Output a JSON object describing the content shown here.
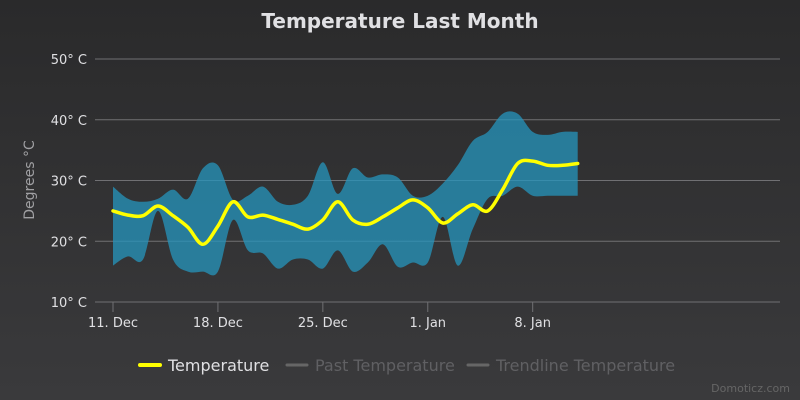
{
  "chart_data": {
    "type": "area",
    "title": "Temperature Last Month",
    "ylabel": "Degrees °C",
    "xlabel": "",
    "x_unit": "days (0 = 11. Dec)",
    "x_range": [
      0,
      44.5
    ],
    "ylim": [
      10,
      50
    ],
    "y_ticks": [
      {
        "value": 10,
        "label": "10° C"
      },
      {
        "value": 20,
        "label": "20° C"
      },
      {
        "value": 30,
        "label": "30° C"
      },
      {
        "value": 40,
        "label": "40° C"
      },
      {
        "value": 50,
        "label": "50° C"
      }
    ],
    "x_ticks": [
      {
        "value": 0,
        "label": "11. Dec"
      },
      {
        "value": 7,
        "label": "18. Dec"
      },
      {
        "value": 14,
        "label": "25. Dec"
      },
      {
        "value": 21,
        "label": "1. Jan"
      },
      {
        "value": 28,
        "label": "8. Jan"
      }
    ],
    "grid": true,
    "legend_position": "bottom-center",
    "series": [
      {
        "name": "Temperature",
        "role": "line",
        "color": "#ffff00",
        "x": [
          0,
          1,
          2,
          3,
          4,
          5,
          6,
          7,
          8,
          9,
          10,
          11,
          12,
          13,
          14,
          15,
          16,
          17,
          18,
          19,
          20,
          21,
          22,
          23,
          24,
          25,
          26,
          27,
          28,
          29,
          30,
          31
        ],
        "values": [
          25.0,
          24.3,
          24.2,
          25.8,
          24.2,
          22.3,
          19.5,
          22.5,
          26.5,
          24.0,
          24.3,
          23.6,
          22.8,
          22.0,
          23.5,
          26.5,
          23.5,
          22.8,
          24.0,
          25.5,
          26.8,
          25.5,
          23.0,
          24.5,
          26.0,
          25.0,
          28.5,
          32.8,
          33.2,
          32.5,
          32.5,
          32.8
        ]
      },
      {
        "name": "Range",
        "role": "band",
        "color": "#2596be",
        "x": [
          0,
          1,
          2,
          3,
          4,
          5,
          6,
          7,
          8,
          9,
          10,
          11,
          12,
          13,
          14,
          15,
          16,
          17,
          18,
          19,
          20,
          21,
          22,
          23,
          24,
          25,
          26,
          27,
          28,
          29,
          30,
          31
        ],
        "high": [
          29.0,
          27.0,
          26.5,
          27.0,
          28.5,
          27.0,
          32.0,
          32.5,
          26.8,
          27.5,
          29.0,
          26.5,
          26.0,
          27.5,
          33.0,
          27.8,
          32.0,
          30.5,
          31.0,
          30.5,
          27.5,
          27.5,
          29.5,
          32.5,
          36.5,
          38.0,
          41.0,
          41.0,
          38.0,
          37.5,
          38.0,
          38.0
        ],
        "low": [
          16.0,
          17.5,
          17.0,
          25.0,
          17.0,
          15.0,
          15.0,
          15.0,
          23.5,
          18.5,
          18.0,
          15.5,
          17.0,
          17.0,
          15.5,
          18.5,
          15.0,
          16.5,
          19.5,
          15.8,
          16.5,
          16.5,
          24.0,
          16.0,
          22.0,
          27.0,
          27.5,
          29.0,
          27.5,
          27.5,
          27.5,
          27.5
        ]
      }
    ],
    "legend": [
      {
        "label": "Temperature",
        "color": "#ffff00",
        "active": true
      },
      {
        "label": "Past Temperature",
        "color": "#666666",
        "active": false
      },
      {
        "label": "Trendline Temperature",
        "color": "#666666",
        "active": false
      }
    ],
    "credit": "Domoticz.com"
  }
}
